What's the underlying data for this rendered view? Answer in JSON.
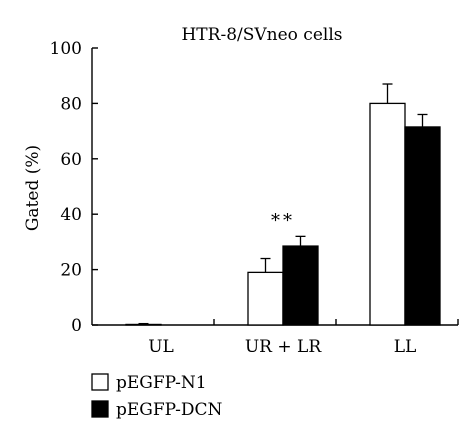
{
  "chart_data": {
    "type": "bar",
    "title": "HTR-8/SVneo cells",
    "ylabel": "Gated (%)",
    "xlabel": "",
    "categories": [
      "UL",
      "UR + LR",
      "LL"
    ],
    "ylim": [
      0,
      100
    ],
    "yticks": [
      0,
      20,
      40,
      60,
      80,
      100
    ],
    "series": [
      {
        "name": "pEGFP-N1",
        "values": [
          0.2,
          19,
          80
        ],
        "errors": [
          0.3,
          5,
          7
        ],
        "color": "#ffffff"
      },
      {
        "name": "pEGFP-DCN",
        "values": [
          0,
          28.5,
          71.5
        ],
        "errors": [
          0,
          3.5,
          4.5
        ],
        "color": "#000000"
      }
    ],
    "annotations": [
      {
        "category": "UR + LR",
        "text": "**"
      }
    ],
    "legend": "bottom-left",
    "grid": false
  }
}
